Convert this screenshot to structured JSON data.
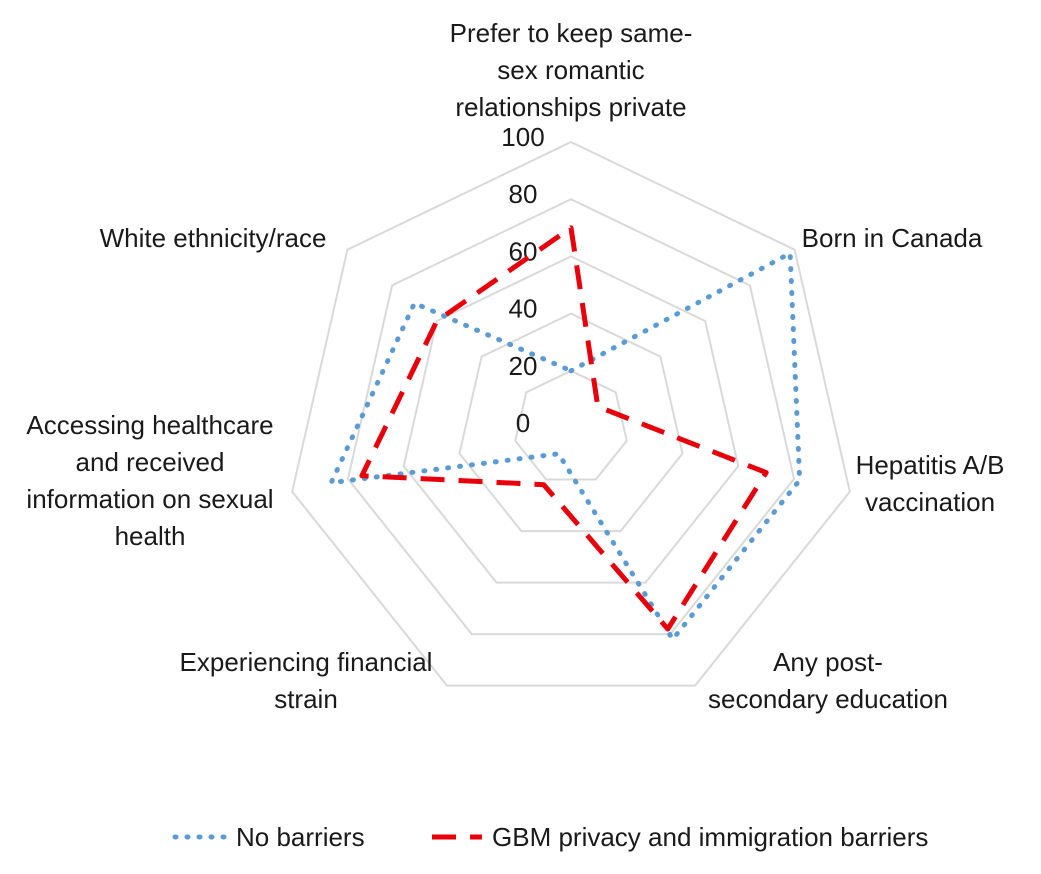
{
  "chart_data": {
    "type": "radar",
    "categories": [
      "Prefer to keep same-sex romantic relationships private",
      "Born in Canada",
      "Hepatitis A/B vaccination",
      "Any post-secondary education",
      "Experiencing financial strain",
      "Accessing healthcare and received information on sexual health",
      "White ethnicity/race"
    ],
    "category_lines": [
      [
        "Prefer to keep same-",
        "sex romantic",
        "relationships private"
      ],
      [
        "Born in Canada"
      ],
      [
        "Hepatitis A/B",
        "vaccination"
      ],
      [
        "Any post-",
        "secondary education"
      ],
      [
        "Experiencing financial",
        "strain"
      ],
      [
        "Accessing healthcare",
        "and received",
        "information on sexual",
        "health"
      ],
      [
        "White ethnicity/race"
      ]
    ],
    "r_ticks": [
      0,
      20,
      40,
      60,
      80,
      100
    ],
    "rlim": [
      0,
      100
    ],
    "grid": true,
    "legend_position": "bottom",
    "series": [
      {
        "name": "No barriers",
        "values": [
          20,
          98,
          82,
          82,
          10,
          86,
          70
        ],
        "color": "#5b9bd5",
        "style": "dotted"
      },
      {
        "name": "GBM privacy and immigration barriers",
        "values": [
          70,
          12,
          70,
          78,
          22,
          75,
          60
        ],
        "color": "#e8000b",
        "style": "dashed"
      }
    ]
  }
}
